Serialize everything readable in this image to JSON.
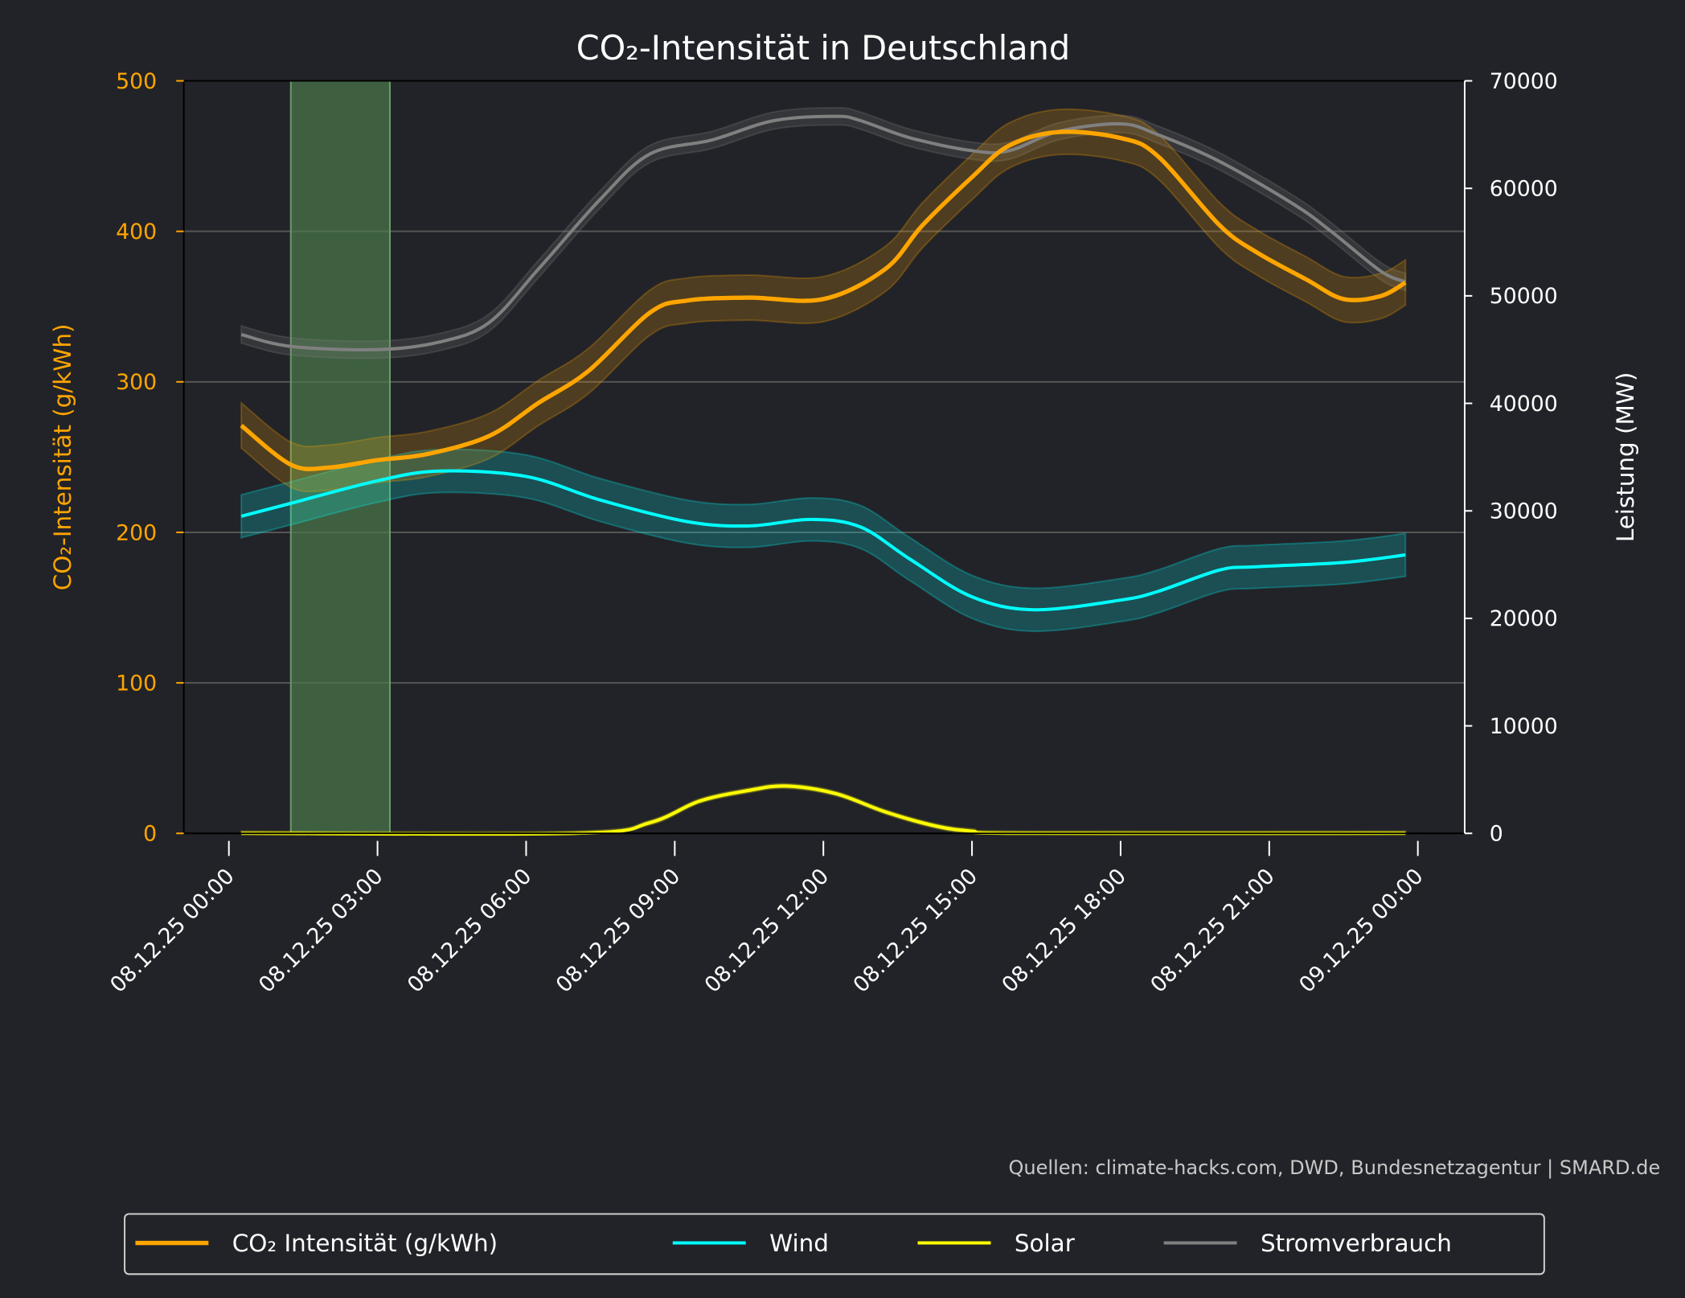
{
  "chart_data": {
    "type": "line",
    "title": "CO₂-Intensität in Deutschland",
    "ylabel": "CO₂-Intensität (g/kWh)",
    "y2label": "Leistung (MW)",
    "ylim": [
      0,
      500
    ],
    "y2lim": [
      0,
      70000
    ],
    "yticks": [
      "0",
      "100",
      "200",
      "300",
      "400",
      "500"
    ],
    "y2ticks": [
      "0",
      "10000",
      "20000",
      "30000",
      "40000",
      "50000",
      "60000",
      "70000"
    ],
    "xticks": [
      "08.12.25 00:00",
      "08.12.25 03:00",
      "08.12.25 06:00",
      "08.12.25 09:00",
      "08.12.25 12:00",
      "08.12.25 15:00",
      "08.12.25 18:00",
      "08.12.25 21:00",
      "09.12.25 00:00"
    ],
    "grid": "horizontal",
    "legend_position": "bottom",
    "highlight_span": [
      "08.12.25 01:15",
      "08.12.25 03:15"
    ],
    "highlight_color": "#4a7a4a",
    "source": "Quellen: climate-hacks.com, DWD, Bundesnetzagentur | SMARD.de",
    "series": [
      {
        "name": "CO₂ Intensität (g/kWh)",
        "axis": "left",
        "color": "#ffa500",
        "band": 15,
        "x": [
          "08.12.25 00:15",
          "08.12.25 01:15",
          "08.12.25 02:00",
          "08.12.25 03:00",
          "08.12.25 04:00",
          "08.12.25 05:15",
          "08.12.25 06:15",
          "08.12.25 07:15",
          "08.12.25 08:30",
          "08.12.25 09:15",
          "08.12.25 10:30",
          "08.12.25 12:00",
          "08.12.25 13:15",
          "08.12.25 14:00",
          "08.12.25 15:00",
          "08.12.25 15:45",
          "08.12.25 16:45",
          "08.12.25 18:00",
          "08.12.25 18:45",
          "08.12.25 20:00",
          "08.12.25 20:45",
          "08.12.25 21:45",
          "08.12.25 22:30",
          "08.12.25 23:15",
          "08.12.25 23:45"
        ],
        "y": [
          271,
          245,
          243,
          248,
          252,
          264,
          286,
          307,
          346,
          354,
          356,
          355,
          375,
          404,
          436,
          457,
          466,
          462,
          450,
          404,
          386,
          368,
          355,
          357,
          366
        ]
      },
      {
        "name": "Wind",
        "axis": "right",
        "color": "#00ffff",
        "band": 2000,
        "x": [
          "08.12.25 00:15",
          "08.12.25 01:15",
          "08.12.25 03:00",
          "08.12.25 04:15",
          "08.12.25 06:00",
          "08.12.25 07:30",
          "08.12.25 09:15",
          "08.12.25 10:30",
          "08.12.25 11:45",
          "08.12.25 12:45",
          "08.12.25 13:45",
          "08.12.25 15:00",
          "08.12.25 16:15",
          "08.12.25 18:00",
          "08.12.25 18:45",
          "08.12.25 20:00",
          "08.12.25 20:45",
          "08.12.25 22:30",
          "08.12.25 23:45"
        ],
        "y": [
          29500,
          30700,
          32800,
          33700,
          33200,
          31000,
          29000,
          28600,
          29200,
          28500,
          25500,
          22000,
          20800,
          21700,
          22500,
          24500,
          24800,
          25200,
          25900
        ]
      },
      {
        "name": "Solar",
        "axis": "right",
        "color": "#ffff00",
        "band": 200,
        "x": [
          "08.12.25 00:15",
          "08.12.25 07:00",
          "08.12.25 08:30",
          "08.12.25 09:30",
          "08.12.25 10:30",
          "08.12.25 11:15",
          "08.12.25 12:15",
          "08.12.25 13:15",
          "08.12.25 14:15",
          "08.12.25 15:00",
          "08.12.25 16:00",
          "08.12.25 23:45"
        ],
        "y": [
          0,
          0,
          1000,
          3000,
          4000,
          4400,
          3700,
          2000,
          700,
          200,
          0,
          0
        ]
      },
      {
        "name": "Stromverbrauch",
        "axis": "right",
        "color": "#808080",
        "band": 800,
        "x": [
          "08.12.25 00:15",
          "08.12.25 01:15",
          "08.12.25 03:00",
          "08.12.25 04:15",
          "08.12.25 05:15",
          "08.12.25 06:15",
          "08.12.25 07:30",
          "08.12.25 08:30",
          "08.12.25 09:45",
          "08.12.25 11:00",
          "08.12.25 12:15",
          "08.12.25 12:45",
          "08.12.25 13:45",
          "08.12.25 15:00",
          "08.12.25 15:45",
          "08.12.25 16:45",
          "08.12.25 18:00",
          "08.12.25 18:45",
          "08.12.25 20:00",
          "08.12.25 21:30",
          "08.12.25 22:15",
          "08.12.25 23:15",
          "08.12.25 23:45"
        ],
        "y": [
          46400,
          45300,
          45000,
          45700,
          47500,
          52500,
          59000,
          63200,
          64500,
          66300,
          66700,
          66300,
          64700,
          63500,
          63500,
          65300,
          66000,
          65000,
          62500,
          58500,
          56000,
          52300,
          51300
        ]
      }
    ]
  }
}
